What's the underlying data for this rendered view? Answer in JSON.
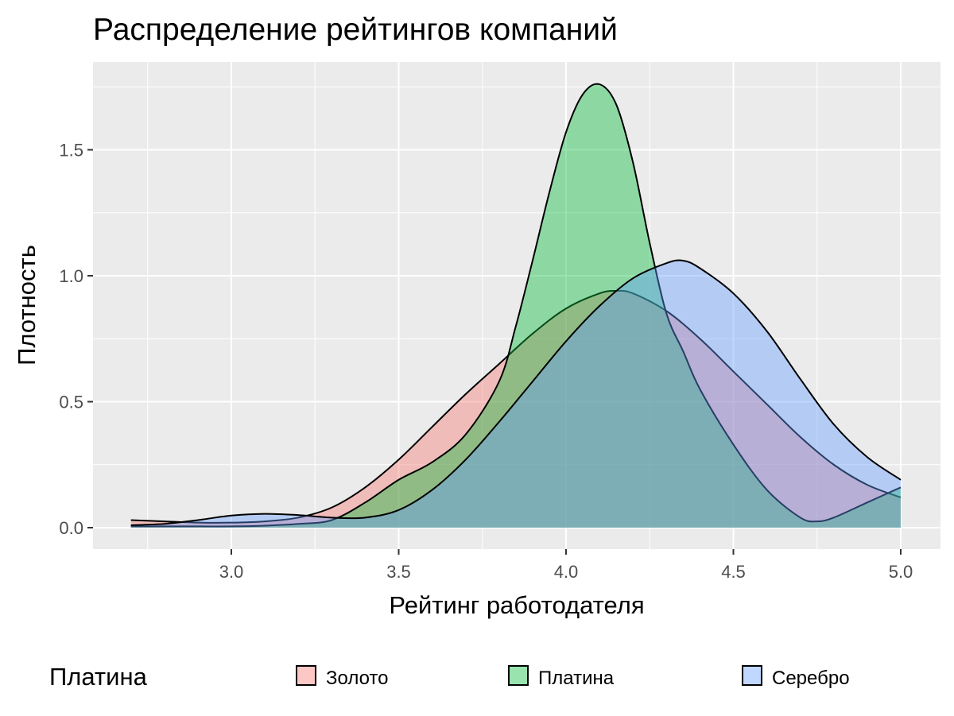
{
  "chart_data": {
    "type": "area",
    "title": "Распределение рейтингов компаний",
    "xlabel": "Рейтинг работодателя",
    "ylabel": "Плотность",
    "xlim": [
      2.7,
      5.0
    ],
    "ylim": [
      0,
      1.8
    ],
    "x_ticks": [
      "3.0",
      "3.5",
      "4.0",
      "4.5",
      "5.0"
    ],
    "y_ticks": [
      "0.0",
      "0.5",
      "1.0",
      "1.5"
    ],
    "grid": true,
    "legend": {
      "title": "Платина",
      "position": "bottom",
      "labels": [
        "Золото",
        "Платина",
        "Серебро"
      ]
    },
    "series": [
      {
        "name": "Золото",
        "color": "#F8766D",
        "x": [
          2.7,
          2.8,
          2.9,
          3.0,
          3.1,
          3.2,
          3.3,
          3.4,
          3.5,
          3.6,
          3.7,
          3.8,
          3.9,
          4.0,
          4.1,
          4.15,
          4.2,
          4.3,
          4.4,
          4.5,
          4.6,
          4.7,
          4.8,
          4.9,
          5.0
        ],
        "values": [
          0.03,
          0.025,
          0.02,
          0.02,
          0.025,
          0.04,
          0.08,
          0.16,
          0.27,
          0.4,
          0.53,
          0.65,
          0.77,
          0.87,
          0.93,
          0.94,
          0.93,
          0.86,
          0.75,
          0.62,
          0.49,
          0.36,
          0.25,
          0.17,
          0.12
        ]
      },
      {
        "name": "Платина",
        "color": "#00BA38",
        "x": [
          2.7,
          2.8,
          2.9,
          3.0,
          3.1,
          3.2,
          3.3,
          3.4,
          3.5,
          3.6,
          3.7,
          3.8,
          3.85,
          3.9,
          3.95,
          4.0,
          4.05,
          4.1,
          4.15,
          4.2,
          4.25,
          4.3,
          4.35,
          4.4,
          4.5,
          4.6,
          4.7,
          4.75,
          4.8,
          4.9,
          5.0
        ],
        "values": [
          0.005,
          0.005,
          0.005,
          0.005,
          0.008,
          0.015,
          0.03,
          0.1,
          0.19,
          0.26,
          0.37,
          0.58,
          0.8,
          1.06,
          1.33,
          1.57,
          1.72,
          1.76,
          1.68,
          1.45,
          1.13,
          0.85,
          0.7,
          0.55,
          0.33,
          0.15,
          0.04,
          0.025,
          0.04,
          0.1,
          0.16
        ]
      },
      {
        "name": "Серебро",
        "color": "#619CFF",
        "x": [
          2.7,
          2.8,
          2.9,
          3.0,
          3.1,
          3.2,
          3.3,
          3.4,
          3.5,
          3.6,
          3.7,
          3.8,
          3.9,
          4.0,
          4.1,
          4.2,
          4.3,
          4.35,
          4.4,
          4.5,
          4.6,
          4.7,
          4.8,
          4.9,
          5.0
        ],
        "values": [
          0.01,
          0.015,
          0.03,
          0.048,
          0.055,
          0.05,
          0.04,
          0.04,
          0.07,
          0.15,
          0.27,
          0.42,
          0.58,
          0.74,
          0.88,
          0.99,
          1.05,
          1.06,
          1.03,
          0.93,
          0.78,
          0.59,
          0.41,
          0.28,
          0.19
        ]
      }
    ]
  }
}
